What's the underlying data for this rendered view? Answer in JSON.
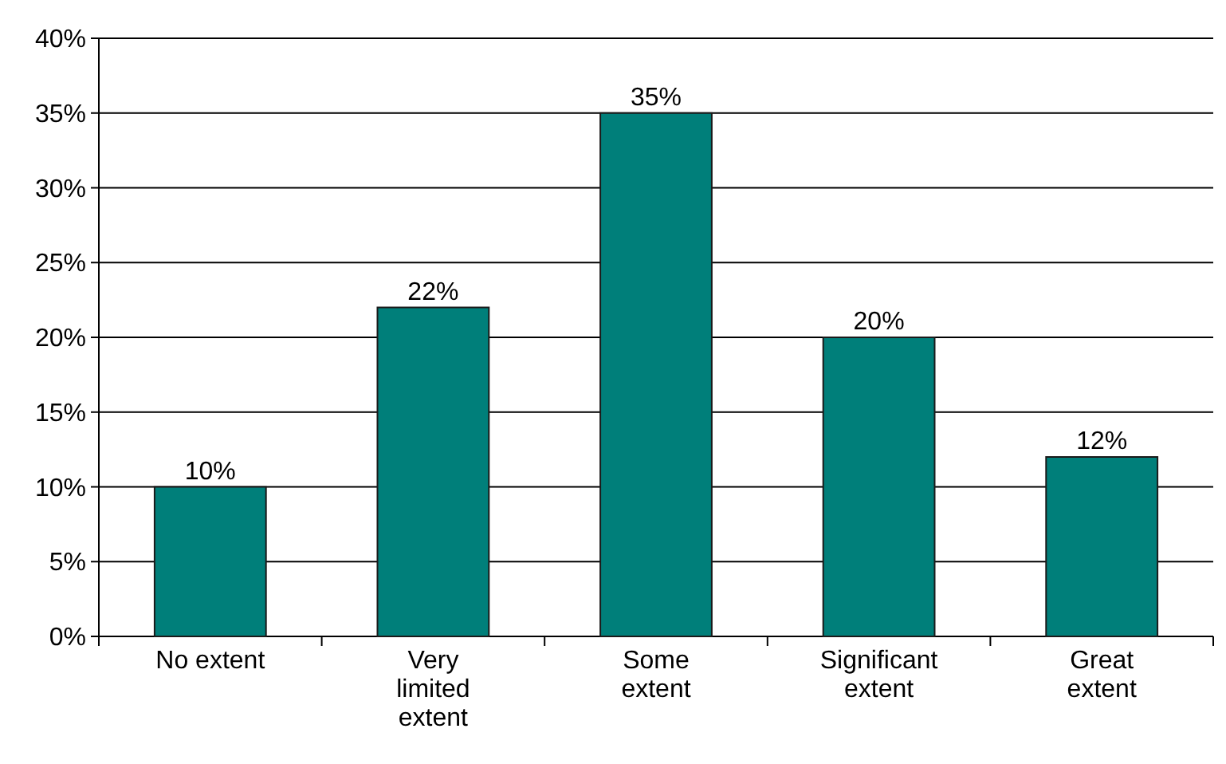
{
  "chart_data": {
    "type": "bar",
    "categories": [
      "No extent",
      "Very limited extent",
      "Some extent",
      "Significant extent",
      "Great extent"
    ],
    "values": [
      10,
      22,
      35,
      20,
      12
    ],
    "value_labels": [
      "10%",
      "22%",
      "35%",
      "20%",
      "12%"
    ],
    "color": "#007f7a",
    "grid": "y",
    "ylim": [
      0,
      40
    ],
    "yticks": [
      {
        "value": 0,
        "label": "0%"
      },
      {
        "value": 5,
        "label": "5%"
      },
      {
        "value": 10,
        "label": "10%"
      },
      {
        "value": 15,
        "label": "15%"
      },
      {
        "value": 20,
        "label": "20%"
      },
      {
        "value": 25,
        "label": "25%"
      },
      {
        "value": 30,
        "label": "30%"
      },
      {
        "value": 35,
        "label": "35%"
      },
      {
        "value": 40,
        "label": "40%"
      }
    ]
  }
}
